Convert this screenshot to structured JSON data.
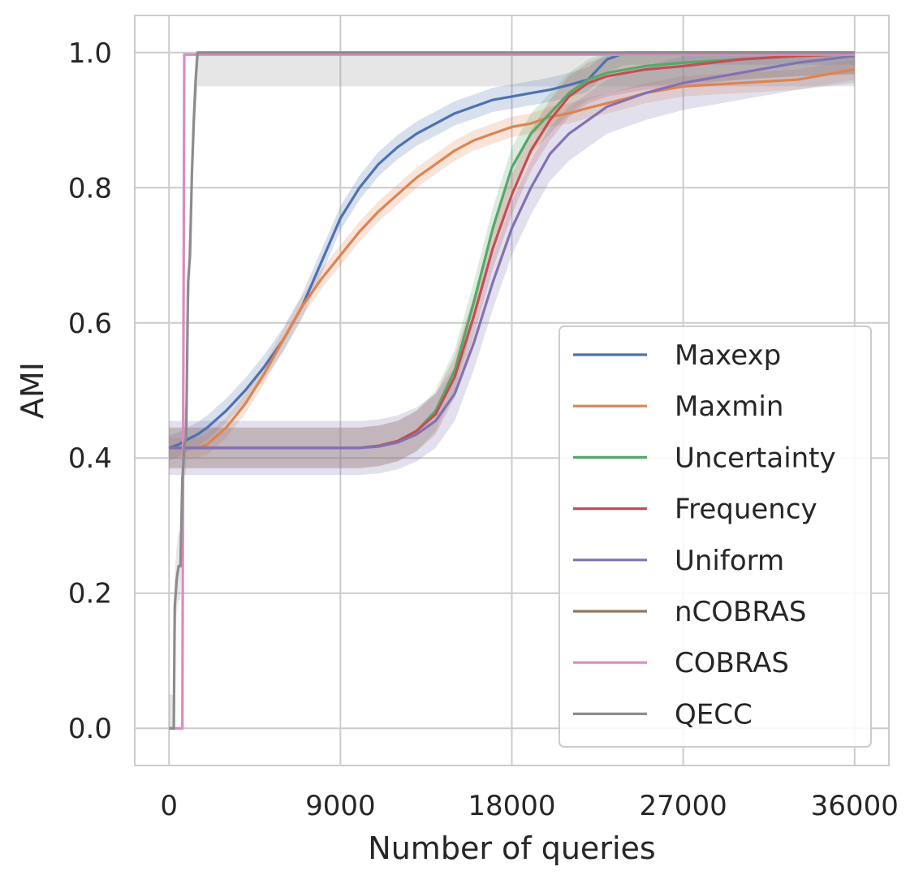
{
  "chart_data": {
    "type": "line",
    "title": "",
    "xlabel": "Number of queries",
    "ylabel": "AMI",
    "xlim": [
      -1800,
      37800
    ],
    "ylim": [
      -0.055,
      1.055
    ],
    "xticks": [
      0,
      9000,
      18000,
      27000,
      36000
    ],
    "xtick_labels": [
      "0",
      "9000",
      "18000",
      "27000",
      "36000"
    ],
    "yticks": [
      0.0,
      0.2,
      0.4,
      0.6,
      0.8,
      1.0
    ],
    "ytick_labels": [
      "0.0",
      "0.2",
      "0.4",
      "0.6",
      "0.8",
      "1.0"
    ],
    "grid": true,
    "legend_position": "lower-right",
    "series": [
      {
        "name": "Maxexp",
        "color": "#4c72b0",
        "band": 0.018,
        "x": [
          0,
          500,
          1000,
          1500,
          2000,
          3000,
          4000,
          5000,
          6000,
          7000,
          8000,
          9000,
          10000,
          11000,
          12000,
          13000,
          14000,
          15000,
          16000,
          17000,
          18000,
          19000,
          20000,
          21000,
          22000,
          23000,
          24000,
          27000,
          30000,
          33000,
          36000
        ],
        "y": [
          0.415,
          0.42,
          0.428,
          0.435,
          0.445,
          0.47,
          0.5,
          0.535,
          0.575,
          0.625,
          0.69,
          0.755,
          0.8,
          0.835,
          0.86,
          0.88,
          0.895,
          0.91,
          0.92,
          0.93,
          0.935,
          0.94,
          0.945,
          0.952,
          0.96,
          0.99,
          1.0,
          1.0,
          1.0,
          1.0,
          1.0
        ]
      },
      {
        "name": "Maxmin",
        "color": "#dd8452",
        "band": 0.015,
        "x": [
          0,
          1500,
          2000,
          3000,
          4000,
          5000,
          6000,
          7000,
          8000,
          9000,
          10000,
          11000,
          12000,
          13000,
          14000,
          15000,
          16000,
          17000,
          18000,
          19000,
          20000,
          21000,
          22000,
          23000,
          24000,
          25000,
          27000,
          30000,
          33000,
          36000
        ],
        "y": [
          0.415,
          0.415,
          0.42,
          0.445,
          0.48,
          0.525,
          0.575,
          0.625,
          0.665,
          0.7,
          0.735,
          0.765,
          0.79,
          0.815,
          0.835,
          0.855,
          0.87,
          0.88,
          0.89,
          0.895,
          0.905,
          0.91,
          0.918,
          0.925,
          0.932,
          0.94,
          0.95,
          0.955,
          0.96,
          0.975
        ]
      },
      {
        "name": "Uncertainty",
        "color": "#55a868",
        "band": 0.03,
        "x": [
          0,
          10000,
          11000,
          12000,
          13000,
          14000,
          15000,
          16000,
          17000,
          18000,
          19000,
          20000,
          21000,
          22000,
          23000,
          25000,
          27000,
          30000,
          33000,
          36000
        ],
        "y": [
          0.415,
          0.415,
          0.418,
          0.425,
          0.44,
          0.47,
          0.53,
          0.63,
          0.74,
          0.83,
          0.88,
          0.91,
          0.94,
          0.96,
          0.97,
          0.98,
          0.985,
          0.99,
          0.995,
          0.998
        ]
      },
      {
        "name": "Frequency",
        "color": "#c44e52",
        "band": 0.03,
        "x": [
          0,
          10000,
          11000,
          12000,
          13000,
          14000,
          15000,
          16000,
          17000,
          18000,
          19000,
          20000,
          21000,
          22000,
          23000,
          25000,
          27000,
          30000,
          33000,
          36000
        ],
        "y": [
          0.415,
          0.415,
          0.418,
          0.425,
          0.44,
          0.465,
          0.52,
          0.61,
          0.71,
          0.79,
          0.855,
          0.9,
          0.935,
          0.955,
          0.965,
          0.975,
          0.98,
          0.99,
          0.995,
          0.998
        ]
      },
      {
        "name": "Uniform",
        "color": "#8172b3",
        "band": 0.04,
        "x": [
          0,
          10000,
          11000,
          12000,
          13000,
          14000,
          15000,
          16000,
          17000,
          18000,
          19000,
          20000,
          21000,
          22000,
          23000,
          25000,
          27000,
          30000,
          33000,
          36000
        ],
        "y": [
          0.415,
          0.415,
          0.417,
          0.423,
          0.435,
          0.455,
          0.495,
          0.57,
          0.66,
          0.74,
          0.8,
          0.85,
          0.88,
          0.9,
          0.92,
          0.94,
          0.955,
          0.97,
          0.985,
          0.995
        ]
      },
      {
        "name": "nCOBRAS",
        "color": "#937860",
        "band": 0,
        "x": [],
        "y": []
      },
      {
        "name": "COBRAS",
        "color": "#da8bc3",
        "band": 0,
        "x": [
          0,
          400,
          700,
          800,
          900,
          36000
        ],
        "y": [
          0.0,
          0.0,
          0.0,
          0.997,
          0.997,
          0.997
        ]
      },
      {
        "name": "QECC",
        "color": "#8c8c8c",
        "band": 0.05,
        "x": [
          0,
          150,
          250,
          300,
          400,
          500,
          600,
          700,
          750,
          800,
          900,
          1000,
          1100,
          1200,
          1300,
          1400,
          1500,
          1600,
          36000
        ],
        "y": [
          0.0,
          0.0,
          0.0,
          0.18,
          0.22,
          0.24,
          0.24,
          0.37,
          0.39,
          0.42,
          0.43,
          0.66,
          0.7,
          0.82,
          0.9,
          0.96,
          1.0,
          1.0,
          1.0
        ]
      }
    ]
  }
}
